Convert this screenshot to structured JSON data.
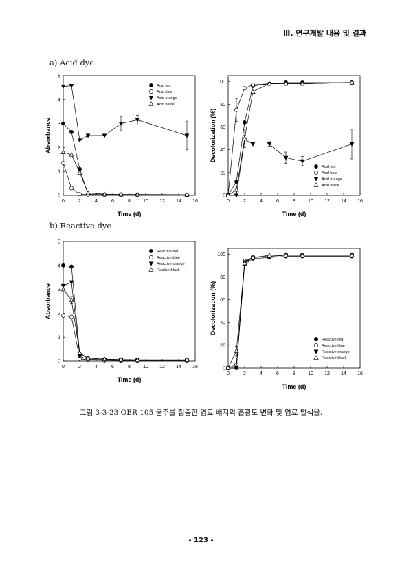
{
  "header": "Ⅲ. 연구개발 내용 및 결과",
  "sections": {
    "a": "a) Acid dye",
    "b": "b) Reactive dye"
  },
  "caption": "그림 3-3-23 OBR 105 균주를 접종한 염료 배지의 흡광도 변화 및 염료 탈색율.",
  "page_number": "- 123 -",
  "chart_data": [
    {
      "type": "line",
      "xlabel": "Time (d)",
      "ylabel": "Absorbance",
      "xlim": [
        0,
        16
      ],
      "ylim": [
        0,
        5
      ],
      "xticks": [
        "0",
        "2",
        "4",
        "6",
        "8",
        "10",
        "12",
        "14",
        "16"
      ],
      "yticks": [
        "0",
        "1",
        "2",
        "3",
        "4",
        "5"
      ],
      "legend_position": "top-right",
      "series": [
        {
          "name": "Acid red",
          "marker": "filled-circle",
          "x": [
            0,
            1,
            2,
            3,
            5,
            7,
            9,
            15
          ],
          "y": [
            3.0,
            2.65,
            1.1,
            0.05,
            0.03,
            0.03,
            0.02,
            0.02
          ]
        },
        {
          "name": "Acid blue",
          "marker": "open-circle",
          "x": [
            0,
            1,
            2,
            3,
            5,
            7,
            9,
            15
          ],
          "y": [
            1.35,
            0.3,
            0.05,
            0.03,
            0.02,
            0.02,
            0.02,
            0.02
          ]
        },
        {
          "name": "Acid orange",
          "marker": "filled-triangle-down",
          "x": [
            0,
            1,
            2,
            3,
            5,
            7,
            9,
            15
          ],
          "y": [
            4.55,
            4.58,
            2.3,
            2.5,
            2.5,
            3.0,
            3.15,
            2.5
          ],
          "error": [
            0,
            0,
            0,
            0,
            0,
            0.3,
            0.2,
            0.6
          ]
        },
        {
          "name": "Acid black",
          "marker": "open-triangle-up",
          "x": [
            0,
            1,
            2,
            3,
            5,
            7,
            9,
            15
          ],
          "y": [
            1.8,
            1.7,
            0.95,
            0.1,
            0.05,
            0.04,
            0.04,
            0.03
          ]
        }
      ]
    },
    {
      "type": "line",
      "xlabel": "Time (d)",
      "ylabel": "Decolorization (%)",
      "xlim": [
        0,
        16
      ],
      "ylim": [
        0,
        105
      ],
      "xticks": [
        "0",
        "2",
        "4",
        "6",
        "8",
        "10",
        "12",
        "14",
        "16"
      ],
      "yticks": [
        "0",
        "20",
        "40",
        "60",
        "80",
        "100"
      ],
      "legend_position": "bottom-right",
      "series": [
        {
          "name": "Acid red",
          "marker": "filled-circle",
          "x": [
            0,
            1,
            2,
            3,
            5,
            7,
            9,
            15
          ],
          "y": [
            0,
            12,
            64,
            96,
            98,
            99,
            99,
            99
          ]
        },
        {
          "name": "Acid blue",
          "marker": "open-circle",
          "x": [
            0,
            1,
            2,
            3,
            5,
            7,
            9,
            15
          ],
          "y": [
            0,
            75,
            94,
            97,
            98,
            98,
            98,
            99
          ],
          "error": [
            0,
            10,
            0,
            0,
            0,
            0,
            0,
            0
          ]
        },
        {
          "name": "Acid orange",
          "marker": "filled-triangle-down",
          "x": [
            0,
            1,
            2,
            3,
            5,
            7,
            9,
            15
          ],
          "y": [
            0,
            0,
            49,
            45,
            45,
            33,
            30,
            45
          ],
          "error": [
            0,
            0,
            4,
            0,
            2,
            5,
            4,
            13
          ]
        },
        {
          "name": "Acid black",
          "marker": "open-triangle-up",
          "x": [
            0,
            1,
            2,
            3,
            5,
            7,
            9,
            15
          ],
          "y": [
            0,
            5,
            50,
            91,
            98,
            98,
            98,
            99
          ],
          "error": [
            0,
            3,
            8,
            0,
            0,
            0,
            0,
            0
          ]
        }
      ]
    },
    {
      "type": "line",
      "xlabel": "Time (d)",
      "ylabel": "Absorbance",
      "xlim": [
        0,
        16
      ],
      "ylim": [
        0,
        5
      ],
      "xticks": [
        "0",
        "2",
        "4",
        "6",
        "8",
        "10",
        "12",
        "14",
        "16"
      ],
      "yticks": [
        "0",
        "1",
        "2",
        "3",
        "4",
        "5"
      ],
      "legend_position": "top-right",
      "series": [
        {
          "name": "Reactive red",
          "marker": "filled-circle",
          "x": [
            0,
            1,
            2,
            3,
            5,
            7,
            9,
            15
          ],
          "y": [
            4.0,
            3.95,
            0.3,
            0.12,
            0.08,
            0.06,
            0.05,
            0.05
          ]
        },
        {
          "name": "Reactive blue",
          "marker": "open-circle",
          "x": [
            0,
            1,
            2,
            3,
            5,
            7,
            9,
            15
          ],
          "y": [
            1.9,
            1.85,
            0.1,
            0.05,
            0.03,
            0.02,
            0.02,
            0.02
          ]
        },
        {
          "name": "Reactive orange",
          "marker": "filled-triangle-down",
          "x": [
            0,
            1,
            2,
            3,
            5,
            7,
            9,
            15
          ],
          "y": [
            3.15,
            3.3,
            0.2,
            0.08,
            0.05,
            0.04,
            0.03,
            0.03
          ]
        },
        {
          "name": "Reative black",
          "marker": "open-triangle-up",
          "x": [
            0,
            1,
            2,
            3,
            5,
            7,
            9,
            15
          ],
          "y": [
            3.0,
            2.55,
            0.35,
            0.12,
            0.08,
            0.06,
            0.05,
            0.05
          ],
          "error": [
            0,
            0.15,
            0,
            0,
            0,
            0,
            0,
            0
          ]
        }
      ]
    },
    {
      "type": "line",
      "xlabel": "Time (d)",
      "ylabel": "Decolorization (%)",
      "xlim": [
        0,
        16
      ],
      "ylim": [
        0,
        105
      ],
      "xticks": [
        "0",
        "2",
        "4",
        "6",
        "8",
        "10",
        "12",
        "14",
        "16"
      ],
      "yticks": [
        "0",
        "20",
        "40",
        "60",
        "80",
        "100"
      ],
      "legend_position": "bottom-right",
      "series": [
        {
          "name": "Reactive red",
          "marker": "filled-circle",
          "x": [
            0,
            1,
            2,
            3,
            5,
            7,
            9,
            15
          ],
          "y": [
            0,
            0,
            91,
            96,
            97,
            98,
            98,
            98
          ]
        },
        {
          "name": "Reactive blue",
          "marker": "open-circle",
          "x": [
            0,
            1,
            2,
            3,
            5,
            7,
            9,
            15
          ],
          "y": [
            0,
            3,
            94,
            97,
            98,
            99,
            99,
            99
          ]
        },
        {
          "name": "Reactive orange",
          "marker": "filled-triangle-down",
          "x": [
            0,
            1,
            2,
            3,
            5,
            7,
            9,
            15
          ],
          "y": [
            0,
            0,
            93,
            97,
            98,
            99,
            99,
            99
          ]
        },
        {
          "name": "Reactive black",
          "marker": "open-triangle-up",
          "x": [
            0,
            1,
            2,
            3,
            5,
            7,
            9,
            15
          ],
          "y": [
            0,
            15,
            92,
            97,
            99,
            99,
            99,
            99
          ],
          "error": [
            0,
            4,
            0,
            0,
            0,
            0,
            0,
            0
          ]
        }
      ]
    }
  ]
}
